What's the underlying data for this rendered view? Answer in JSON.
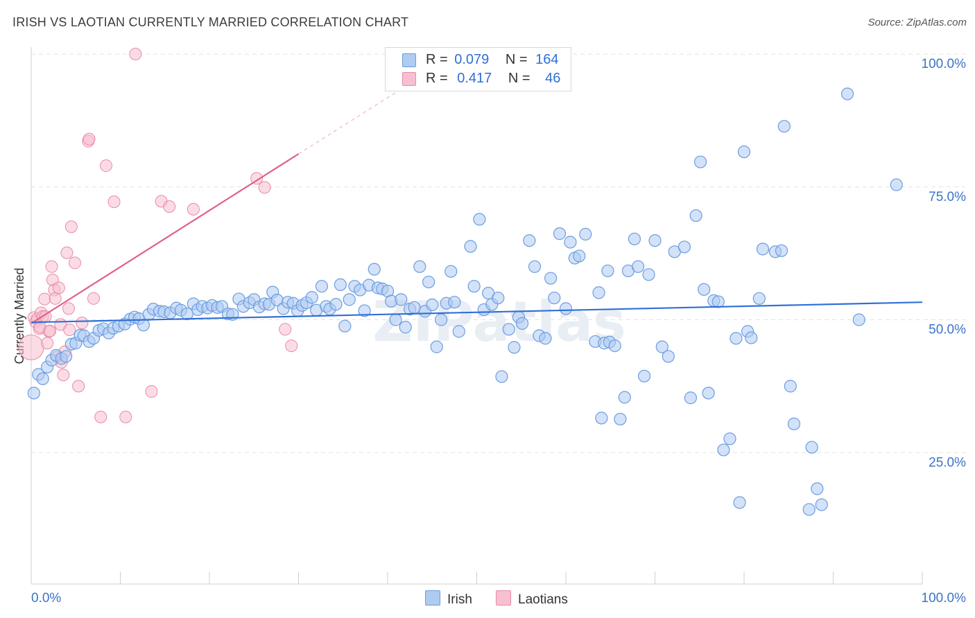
{
  "title": "IRISH VS LAOTIAN CURRENTLY MARRIED CORRELATION CHART",
  "source": "Source: ZipAtlas.com",
  "watermark": "ZIPatlas",
  "legend": {
    "irish": {
      "r_label": "R =",
      "r_value": "0.079",
      "n_label": "N =",
      "n_value": "164"
    },
    "laotian": {
      "r_label": "R =",
      "r_value": "0.417",
      "n_label": "N =",
      "n_value": "46"
    }
  },
  "bottom_legend": {
    "irish": "Irish",
    "laotian": "Laotians"
  },
  "colors": {
    "irish_fill": "#aecbf2",
    "irish_stroke": "#6a9de0",
    "irish_line": "#2f6fd6",
    "laotian_fill": "#f7c0d0",
    "laotian_stroke": "#e88aa8",
    "laotian_line": "#e0608a",
    "axis_text": "#3b73c9",
    "grid": "#e2e2e2"
  },
  "chart_data": {
    "type": "scatter",
    "title": "IRISH VS LAOTIAN CURRENTLY MARRIED CORRELATION CHART",
    "xlabel": "",
    "ylabel": "Currently Married",
    "xlim": [
      0,
      100
    ],
    "ylim": [
      0,
      100
    ],
    "x_tick_labels": [
      "0.0%",
      "100.0%"
    ],
    "y_tick_labels": [
      "25.0%",
      "50.0%",
      "75.0%",
      "100.0%"
    ],
    "y_ticks": [
      25,
      50,
      75,
      100
    ],
    "grid": true,
    "legend_position": "top-center",
    "series": [
      {
        "name": "Irish",
        "r": 0.079,
        "n": 164,
        "trend": {
          "x": [
            0,
            100
          ],
          "y": [
            49.5,
            53.3
          ]
        },
        "points": [
          [
            0.3,
            36.2
          ],
          [
            0.8,
            39.7
          ],
          [
            1.3,
            38.9
          ],
          [
            1.8,
            41.1
          ],
          [
            2.3,
            42.4
          ],
          [
            2.8,
            43.3
          ],
          [
            3.4,
            42.7
          ],
          [
            3.9,
            43.1
          ],
          [
            4.5,
            45.4
          ],
          [
            5.0,
            45.6
          ],
          [
            5.5,
            47.1
          ],
          [
            5.9,
            47.0
          ],
          [
            6.5,
            45.9
          ],
          [
            7.0,
            46.5
          ],
          [
            7.6,
            48.0
          ],
          [
            8.1,
            48.3
          ],
          [
            8.7,
            47.5
          ],
          [
            9.2,
            48.4
          ],
          [
            9.8,
            48.8
          ],
          [
            10.5,
            49.2
          ],
          [
            11.1,
            50.1
          ],
          [
            11.6,
            50.5
          ],
          [
            12.1,
            50.2
          ],
          [
            12.6,
            49.0
          ],
          [
            13.2,
            51.0
          ],
          [
            13.7,
            52.0
          ],
          [
            14.4,
            51.6
          ],
          [
            14.9,
            51.5
          ],
          [
            15.6,
            51.3
          ],
          [
            16.3,
            52.2
          ],
          [
            16.8,
            51.8
          ],
          [
            17.5,
            51.1
          ],
          [
            18.2,
            53.0
          ],
          [
            18.7,
            51.9
          ],
          [
            19.2,
            52.5
          ],
          [
            19.8,
            52.2
          ],
          [
            20.3,
            52.7
          ],
          [
            20.9,
            52.3
          ],
          [
            21.4,
            52.5
          ],
          [
            22.1,
            51.1
          ],
          [
            22.6,
            51.0
          ],
          [
            23.3,
            53.9
          ],
          [
            23.8,
            52.5
          ],
          [
            24.5,
            53.2
          ],
          [
            25.0,
            53.8
          ],
          [
            25.6,
            52.4
          ],
          [
            26.2,
            53.0
          ],
          [
            26.7,
            52.9
          ],
          [
            27.1,
            55.2
          ],
          [
            27.6,
            53.7
          ],
          [
            28.3,
            52.1
          ],
          [
            28.8,
            53.3
          ],
          [
            29.4,
            53.1
          ],
          [
            29.9,
            51.7
          ],
          [
            30.4,
            52.7
          ],
          [
            30.9,
            53.2
          ],
          [
            31.5,
            54.2
          ],
          [
            32.0,
            51.8
          ],
          [
            32.6,
            56.3
          ],
          [
            33.1,
            52.5
          ],
          [
            33.5,
            52.0
          ],
          [
            34.2,
            52.9
          ],
          [
            34.7,
            56.6
          ],
          [
            35.2,
            48.8
          ],
          [
            35.7,
            53.8
          ],
          [
            36.3,
            56.3
          ],
          [
            36.9,
            55.6
          ],
          [
            37.4,
            51.7
          ],
          [
            37.9,
            56.5
          ],
          [
            38.5,
            59.5
          ],
          [
            38.9,
            56.0
          ],
          [
            39.4,
            55.8
          ],
          [
            40.0,
            55.4
          ],
          [
            40.4,
            53.5
          ],
          [
            40.9,
            50.0
          ],
          [
            41.5,
            53.8
          ],
          [
            42.0,
            48.6
          ],
          [
            42.5,
            52.0
          ],
          [
            43.0,
            52.3
          ],
          [
            43.6,
            60.0
          ],
          [
            44.2,
            51.6
          ],
          [
            44.6,
            57.1
          ],
          [
            45.0,
            52.8
          ],
          [
            45.5,
            44.9
          ],
          [
            46.0,
            50.0
          ],
          [
            46.6,
            53.1
          ],
          [
            47.1,
            59.1
          ],
          [
            47.5,
            53.3
          ],
          [
            48.0,
            47.8
          ],
          [
            49.3,
            63.8
          ],
          [
            49.7,
            56.3
          ],
          [
            50.3,
            68.9
          ],
          [
            50.8,
            51.9
          ],
          [
            51.3,
            55.0
          ],
          [
            51.7,
            52.9
          ],
          [
            52.4,
            54.1
          ],
          [
            52.8,
            39.3
          ],
          [
            53.6,
            48.2
          ],
          [
            54.2,
            44.8
          ],
          [
            54.7,
            50.5
          ],
          [
            55.1,
            49.3
          ],
          [
            55.9,
            64.9
          ],
          [
            56.5,
            60.0
          ],
          [
            57.0,
            47.0
          ],
          [
            57.7,
            46.5
          ],
          [
            58.3,
            57.8
          ],
          [
            58.7,
            54.1
          ],
          [
            59.3,
            66.2
          ],
          [
            60.0,
            52.1
          ],
          [
            60.5,
            64.6
          ],
          [
            61.0,
            61.6
          ],
          [
            61.5,
            62.0
          ],
          [
            62.2,
            66.1
          ],
          [
            63.3,
            45.9
          ],
          [
            63.7,
            55.1
          ],
          [
            64.0,
            31.5
          ],
          [
            64.3,
            45.6
          ],
          [
            64.7,
            59.2
          ],
          [
            64.9,
            45.8
          ],
          [
            65.5,
            45.1
          ],
          [
            66.1,
            31.3
          ],
          [
            66.6,
            35.4
          ],
          [
            67.0,
            59.2
          ],
          [
            67.7,
            65.2
          ],
          [
            68.1,
            60.0
          ],
          [
            68.8,
            39.4
          ],
          [
            69.3,
            58.5
          ],
          [
            70.0,
            64.9
          ],
          [
            70.8,
            44.9
          ],
          [
            71.5,
            43.1
          ],
          [
            72.2,
            62.8
          ],
          [
            73.3,
            63.7
          ],
          [
            74.0,
            35.3
          ],
          [
            74.6,
            69.6
          ],
          [
            75.1,
            79.7
          ],
          [
            75.5,
            55.7
          ],
          [
            76.0,
            36.2
          ],
          [
            76.6,
            53.6
          ],
          [
            77.1,
            53.4
          ],
          [
            77.7,
            25.5
          ],
          [
            78.4,
            27.6
          ],
          [
            79.1,
            46.5
          ],
          [
            79.5,
            15.6
          ],
          [
            80.0,
            81.6
          ],
          [
            80.4,
            47.8
          ],
          [
            80.8,
            46.6
          ],
          [
            81.7,
            54.0
          ],
          [
            82.1,
            63.3
          ],
          [
            83.5,
            62.8
          ],
          [
            84.2,
            63.0
          ],
          [
            84.5,
            86.4
          ],
          [
            85.2,
            37.5
          ],
          [
            85.6,
            30.4
          ],
          [
            87.3,
            14.3
          ],
          [
            87.6,
            26.0
          ],
          [
            88.2,
            18.2
          ],
          [
            88.7,
            15.2
          ],
          [
            91.6,
            92.5
          ],
          [
            92.9,
            50.0
          ],
          [
            97.1,
            75.4
          ]
        ]
      },
      {
        "name": "Laotians",
        "r": 0.417,
        "n": 46,
        "trend": {
          "x": [
            0,
            30
          ],
          "y": [
            49.3,
            81.2
          ]
        },
        "trend_dashed": {
          "x": [
            30,
            43.5
          ],
          "y": [
            81.2,
            95.5
          ]
        },
        "points": [
          [
            0.0,
            44.8
          ],
          [
            0.3,
            50.4
          ],
          [
            0.5,
            49.6
          ],
          [
            0.7,
            50.2
          ],
          [
            0.9,
            48.3
          ],
          [
            1.1,
            51.3
          ],
          [
            1.3,
            50.6
          ],
          [
            1.5,
            53.9
          ],
          [
            1.6,
            50.6
          ],
          [
            1.8,
            45.6
          ],
          [
            2.0,
            47.8
          ],
          [
            2.3,
            60.0
          ],
          [
            2.4,
            57.5
          ],
          [
            2.6,
            55.6
          ],
          [
            2.7,
            54.0
          ],
          [
            2.9,
            43.0
          ],
          [
            3.1,
            56.0
          ],
          [
            3.3,
            49.1
          ],
          [
            3.4,
            42.0
          ],
          [
            3.6,
            39.6
          ],
          [
            3.8,
            44.0
          ],
          [
            4.0,
            62.6
          ],
          [
            4.2,
            52.1
          ],
          [
            4.3,
            48.1
          ],
          [
            4.5,
            67.5
          ],
          [
            4.9,
            60.7
          ],
          [
            5.3,
            37.5
          ],
          [
            5.7,
            49.4
          ],
          [
            6.4,
            83.6
          ],
          [
            6.5,
            84.0
          ],
          [
            7.0,
            54.0
          ],
          [
            7.8,
            31.7
          ],
          [
            8.4,
            79.0
          ],
          [
            9.3,
            72.2
          ],
          [
            10.6,
            31.7
          ],
          [
            11.7,
            100.0
          ],
          [
            13.5,
            36.5
          ],
          [
            14.6,
            72.3
          ],
          [
            15.5,
            71.3
          ],
          [
            18.2,
            70.8
          ],
          [
            25.3,
            76.6
          ],
          [
            26.2,
            74.9
          ],
          [
            28.5,
            48.2
          ],
          [
            29.2,
            45.1
          ],
          [
            1.0,
            48.6
          ],
          [
            2.1,
            47.9
          ]
        ]
      }
    ]
  }
}
